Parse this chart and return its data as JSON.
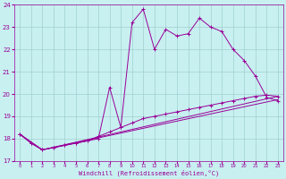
{
  "xlabel": "Windchill (Refroidissement éolien,°C)",
  "bg_color": "#c8f0f0",
  "grid_color": "#a0d0d0",
  "line_color": "#990099",
  "xlim": [
    -0.5,
    23.5
  ],
  "ylim": [
    17,
    24
  ],
  "yticks": [
    17,
    18,
    19,
    20,
    21,
    22,
    23,
    24
  ],
  "xticks": [
    0,
    1,
    2,
    3,
    4,
    5,
    6,
    7,
    8,
    9,
    10,
    11,
    12,
    13,
    14,
    15,
    16,
    17,
    18,
    19,
    20,
    21,
    22,
    23
  ],
  "series1_x": [
    0,
    1,
    2,
    3,
    4,
    5,
    6,
    7,
    8,
    9,
    10,
    11,
    12,
    13,
    14,
    15,
    16,
    17,
    18,
    19,
    20,
    21,
    22,
    23
  ],
  "series1_y": [
    18.2,
    17.8,
    17.5,
    17.6,
    17.7,
    17.8,
    17.9,
    18.0,
    20.3,
    18.5,
    23.2,
    23.8,
    22.0,
    22.9,
    22.6,
    22.7,
    23.4,
    23.0,
    22.8,
    22.0,
    21.5,
    20.8,
    19.85,
    19.7
  ],
  "series2_x": [
    0,
    1,
    2,
    3,
    4,
    5,
    6,
    7,
    8,
    9,
    10,
    11,
    12,
    13,
    14,
    15,
    16,
    17,
    18,
    19,
    20,
    21,
    22,
    23
  ],
  "series2_y": [
    18.2,
    17.8,
    17.5,
    17.6,
    17.7,
    17.8,
    17.9,
    18.1,
    18.3,
    18.5,
    18.7,
    18.9,
    19.0,
    19.1,
    19.2,
    19.3,
    19.4,
    19.5,
    19.6,
    19.7,
    19.8,
    19.9,
    19.95,
    19.9
  ],
  "series3_x": [
    0,
    2,
    23
  ],
  "series3_y": [
    18.2,
    17.5,
    19.9
  ],
  "series4_x": [
    0,
    2,
    23
  ],
  "series4_y": [
    18.2,
    17.5,
    19.75
  ]
}
